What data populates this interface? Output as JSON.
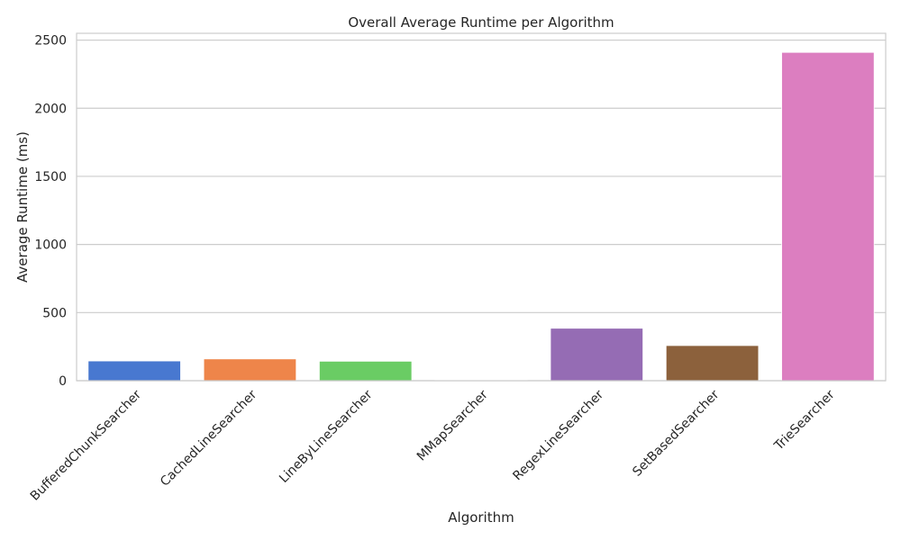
{
  "chart_data": {
    "type": "bar",
    "title": "Overall Average Runtime per Algorithm",
    "xlabel": "Algorithm",
    "ylabel": "Average Runtime (ms)",
    "categories": [
      "BufferedChunkSearcher",
      "CachedLineSearcher",
      "LineByLineSearcher",
      "MMapSearcher",
      "RegexLineSearcher",
      "SetBasedSearcher",
      "TrieSearcher"
    ],
    "values": [
      145,
      160,
      143,
      5,
      385,
      258,
      2410
    ],
    "colors": [
      "#4878d0",
      "#ee854a",
      "#6acc64",
      "#d65f5f",
      "#956cb4",
      "#8c613c",
      "#dc7ec0"
    ],
    "ylim": [
      0,
      2550
    ],
    "yticks": [
      0,
      500,
      1000,
      1500,
      2000,
      2500
    ],
    "grid": true,
    "legend": "none"
  }
}
